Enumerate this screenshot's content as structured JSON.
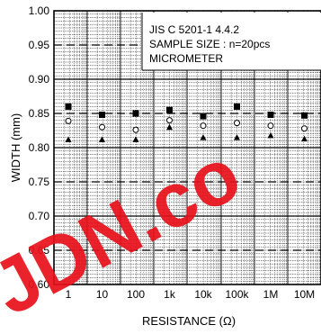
{
  "chart_data": {
    "type": "scatter",
    "title": "",
    "xlabel": "RESISTANCE (Ω)",
    "ylabel": "WIDTH (mm)",
    "x_scale": "log",
    "x_tick_labels": [
      "1",
      "10",
      "100",
      "1k",
      "10k",
      "100k",
      "1M",
      "10M"
    ],
    "x_values": [
      1,
      10,
      100,
      1000,
      10000,
      100000,
      1000000,
      10000000
    ],
    "ylim": [
      0.6,
      1.0
    ],
    "y_ticks": [
      "0.60",
      "0.65",
      "0.70",
      "0.75",
      "0.80",
      "0.85",
      "0.90",
      "0.95",
      "1.00"
    ],
    "grid": true,
    "annotation": [
      "JIS C 5201-1 4.4.2",
      "SAMPLE SIZE : n=20pcs",
      "MICROMETER"
    ],
    "series": [
      {
        "stat": "max",
        "marker": "filled-square",
        "values": [
          0.86,
          0.848,
          0.85,
          0.855,
          0.846,
          0.86,
          0.848,
          0.847
        ]
      },
      {
        "stat": "average",
        "marker": "open-circle",
        "values": [
          0.839,
          0.83,
          0.826,
          0.84,
          0.832,
          0.836,
          0.832,
          0.828
        ]
      },
      {
        "stat": "min",
        "marker": "filled-triangle",
        "values": [
          0.812,
          0.812,
          0.812,
          0.83,
          0.815,
          0.815,
          0.818,
          0.813
        ]
      }
    ],
    "watermark_text": "JDN.co"
  }
}
